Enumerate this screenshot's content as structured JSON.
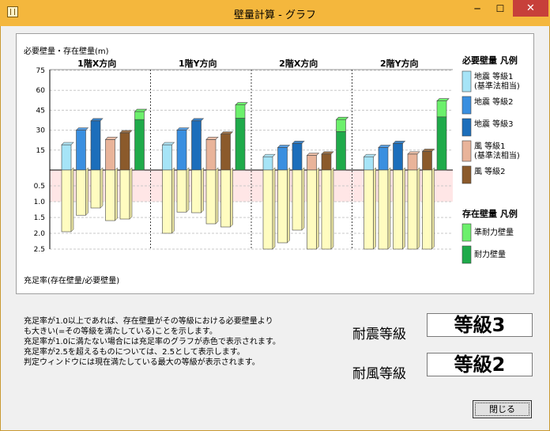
{
  "window": {
    "title": "壁量計算 - グラフ",
    "minimize_glyph": "─",
    "maximize_glyph": "☐",
    "close_glyph": "✕"
  },
  "chart_data": {
    "type": "bar",
    "title": "",
    "top_axis_label": "必要壁量・存在壁量(m)",
    "bottom_axis_label": "充足率(存在壁量/必要壁量)",
    "top_ticks": [
      "75",
      "60",
      "45",
      "30",
      "15"
    ],
    "bottom_ticks": [
      "0.5",
      "1.0",
      "1.5",
      "2.0",
      "2.5"
    ],
    "top_ylim": [
      0,
      75
    ],
    "bottom_ylim": [
      0,
      2.5
    ],
    "groups": [
      "1階X方向",
      "1階Y方向",
      "2階X方向",
      "2階Y方向"
    ],
    "required_series": [
      "地震 等級1\n(基準法相当)",
      "地震 等級2",
      "地震 等級3",
      "風 等級1\n(基準法相当)",
      "風 等級2"
    ],
    "existing_series": [
      "準耐力壁量",
      "耐力壁量"
    ],
    "required_values": [
      [
        19,
        30,
        37,
        23,
        28
      ],
      [
        19,
        30,
        37,
        23,
        27
      ],
      [
        10,
        17,
        20,
        11,
        12
      ],
      [
        10,
        17,
        20,
        12,
        14
      ]
    ],
    "existing_values": [
      {
        "准": 6,
        "main": 38
      },
      {
        "准": 10,
        "main": 39
      },
      {
        "准": 9,
        "main": 29
      },
      {
        "准": 12,
        "main": 40
      }
    ],
    "ratio_values": [
      [
        1.95,
        1.43,
        1.2,
        1.6,
        1.55
      ],
      [
        2.0,
        1.33,
        1.35,
        1.7,
        1.8
      ],
      [
        2.5,
        2.3,
        1.9,
        2.5,
        2.5
      ],
      [
        2.5,
        2.5,
        2.5,
        2.5,
        2.5
      ]
    ]
  },
  "legend": {
    "required_title": "必要壁量 凡例",
    "existing_title": "存在壁量 凡例",
    "required_items": [
      {
        "label": "地震 等級1",
        "sub": "(基準法相当)",
        "color": "#a6e4f7"
      },
      {
        "label": "地震 等級2",
        "sub": "",
        "color": "#3a8fe0"
      },
      {
        "label": "地震 等級3",
        "sub": "",
        "color": "#1c6ebb"
      },
      {
        "label": "風 等級1",
        "sub": "(基準法相当)",
        "color": "#e9b49a"
      },
      {
        "label": "風 等級2",
        "sub": "",
        "color": "#8b5a2b"
      }
    ],
    "existing_items": [
      {
        "label": "準耐力壁量",
        "color": "#6cf06c"
      },
      {
        "label": "耐力壁量",
        "color": "#1faa4a"
      }
    ]
  },
  "notes": [
    "充足率が1.0以上であれば、存在壁量がその等級における必要壁量よりも大きい(=その等級を満たしている)ことを示します。",
    "充足率が1.0に満たない場合には充足率のグラフが赤色で表示されます。",
    "充足率が2.5を超えるものについては、2.5として表示します。",
    "判定ウィンドウには現在満たしている最大の等級が表示されます。"
  ],
  "note_lines": [
    "充足率が1.0以上であれば、存在壁量がその等級における必要壁量より",
    "も大きい(=その等級を満たしている)ことを示します。",
    "充足率が1.0に満たない場合には充足率のグラフが赤色で表示されます。",
    "充足率が2.5を超えるものについては、2.5として表示します。",
    "判定ウィンドウには現在満たしている最大の等級が表示されます。"
  ],
  "grades": {
    "seismic_label": "耐震等級",
    "seismic_value": "等級3",
    "wind_label": "耐風等級",
    "wind_value": "等級2"
  },
  "buttons": {
    "close_label": "閉じる"
  },
  "colors": {
    "titlebar": "#f4b73d",
    "ratio_bar": "#fffcc0",
    "warning_band": "#ffe6e6"
  }
}
